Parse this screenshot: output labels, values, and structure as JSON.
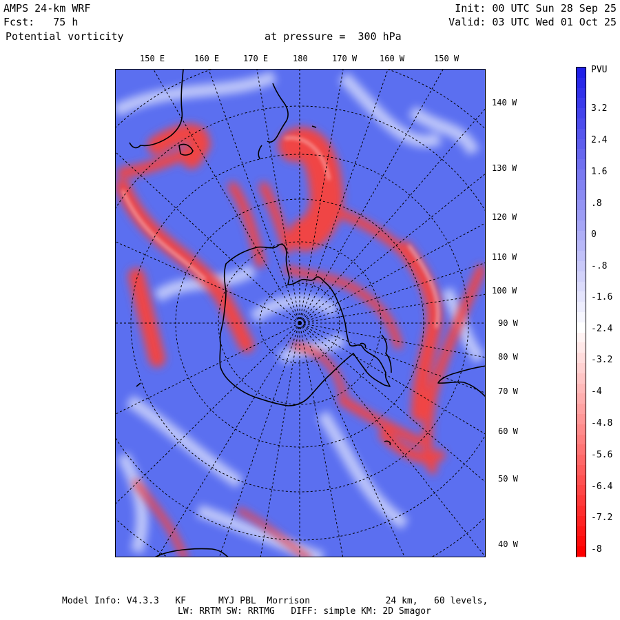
{
  "header": {
    "model": "AMPS 24-km WRF",
    "forecast": "Fcst:   75 h",
    "field": "Potential vorticity",
    "pressure": "at pressure =  300 hPa",
    "init": "Init: 00 UTC Sun 28 Sep 25",
    "valid": "Valid: 03 UTC Wed 01 Oct 25"
  },
  "top_longitudes": [
    "150 E",
    "160 E",
    "170 E",
    "180",
    "170 W",
    "160 W",
    "150 W"
  ],
  "right_longitudes": [
    "140 W",
    "130 W",
    "120 W",
    "110 W",
    "100 W",
    "90 W",
    "80 W",
    "70 W",
    "60 W",
    "50 W",
    "40 W"
  ],
  "colorbar": {
    "unit": "PVU",
    "labels": [
      "3.2",
      "2.4",
      "1.6",
      ".8",
      "0",
      "-.8",
      "-1.6",
      "-2.4",
      "-3.2",
      "-4",
      "-4.8",
      "-5.6",
      "-6.4",
      "-7.2",
      "-8"
    ],
    "colors": {
      "max": "#2020e8",
      "mid": "#ffffff",
      "min": "#ff0000"
    }
  },
  "colors": {
    "land_outline": "#000000",
    "grid": "#000000",
    "pv_low": "#5b6ff0",
    "pv_high": "#f04545"
  },
  "footer": {
    "line1": "Model Info: V4.3.3   KF      MYJ PBL  Morrison              24 km,   60 levels,",
    "line2": "LW: RRTM SW: RRTMG   DIFF: simple KM: 2D Smagor"
  }
}
